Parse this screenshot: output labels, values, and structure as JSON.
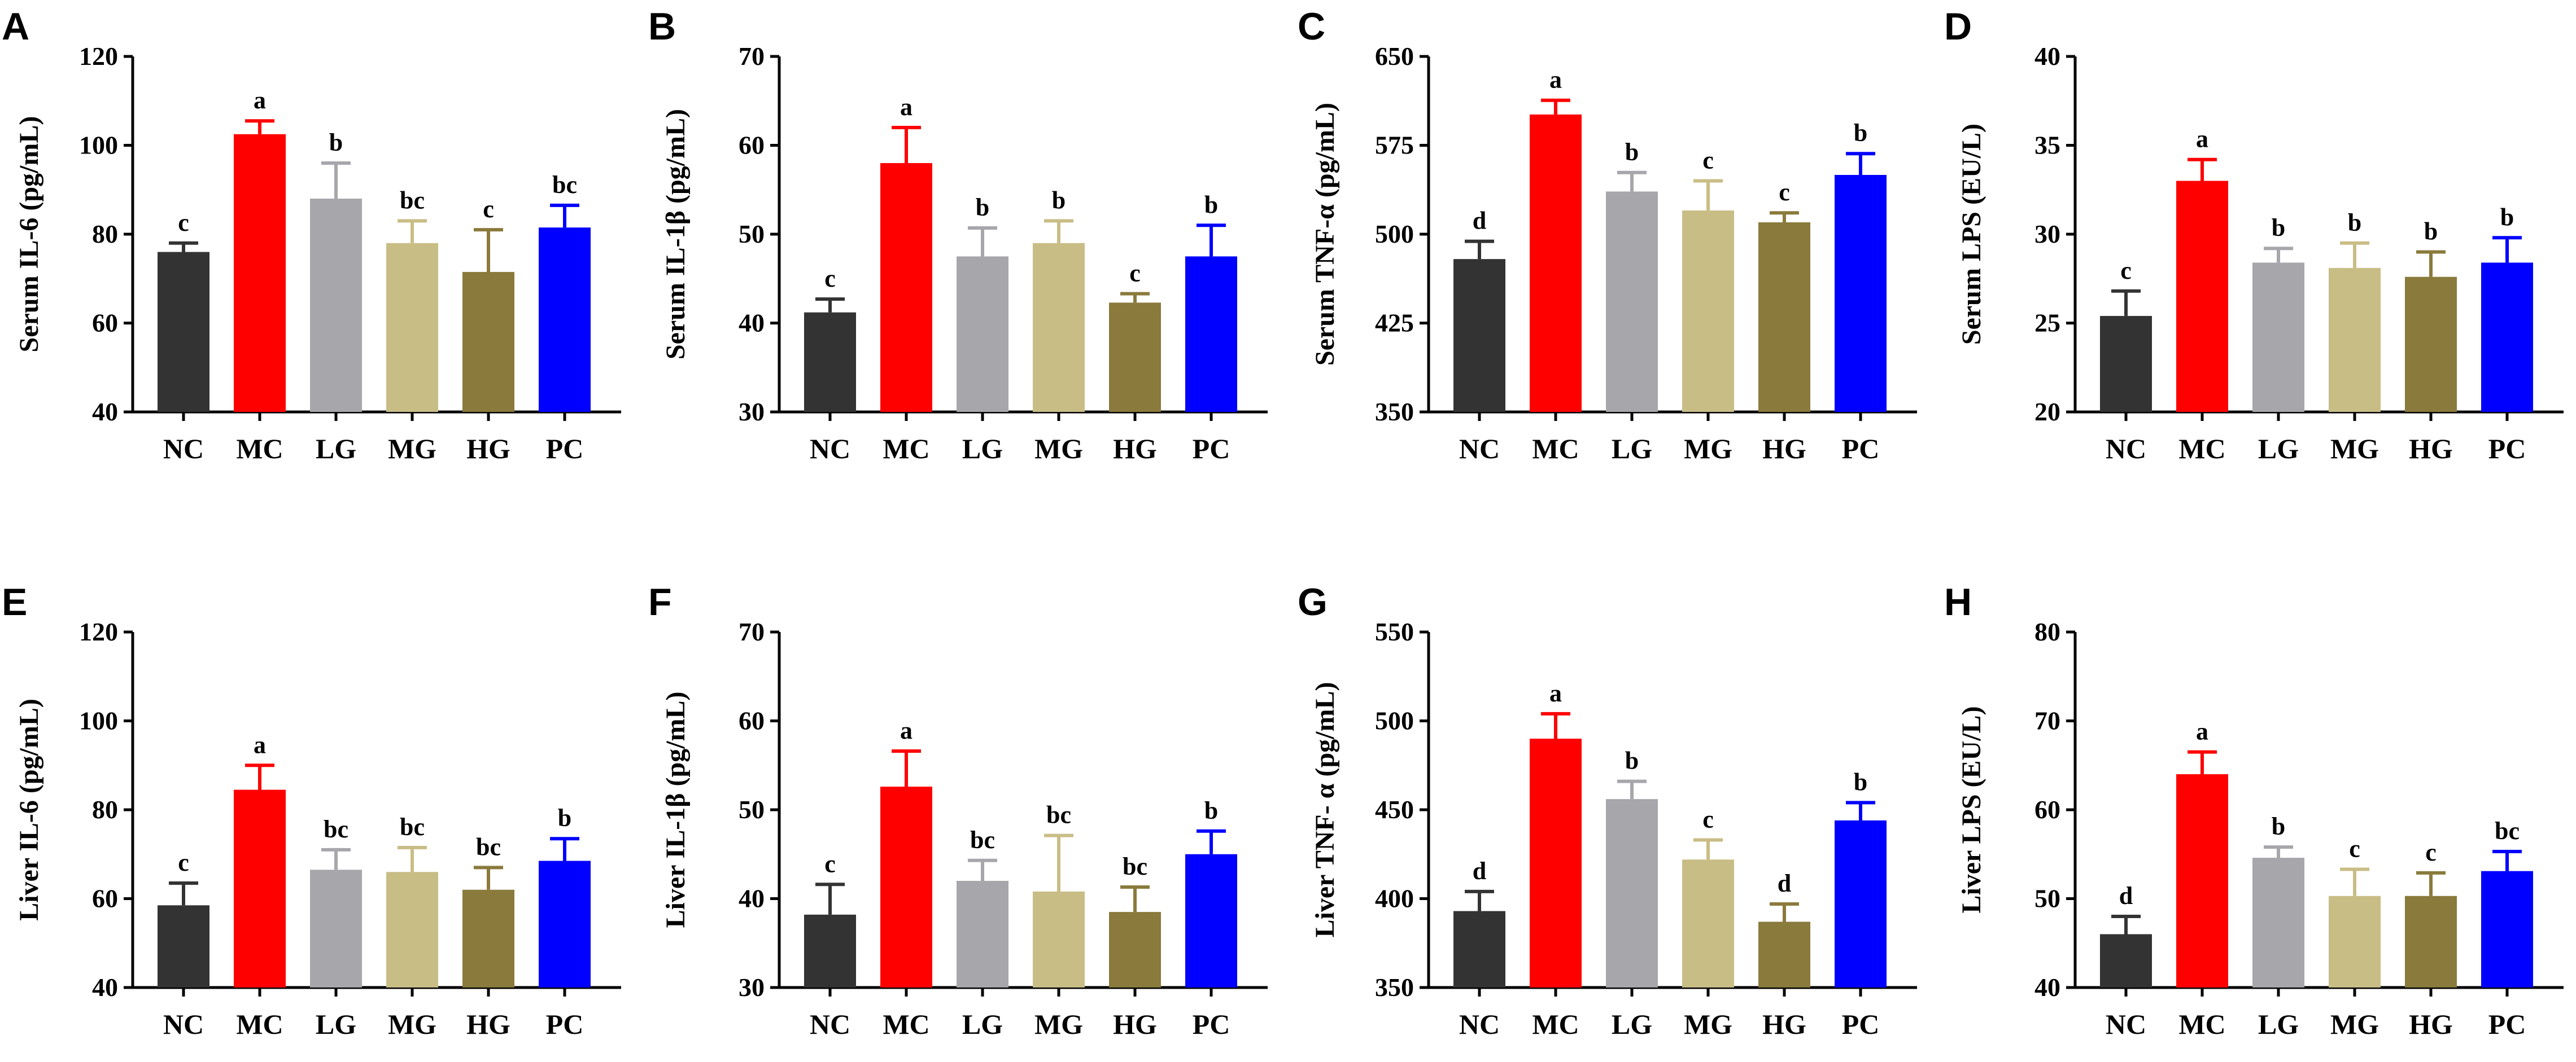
{
  "chart_data": [
    {
      "type": "bar",
      "panel": "A",
      "ylabel": "Serum IL-6 (pg/mL)",
      "categories": [
        "NC",
        "MC",
        "LG",
        "MG",
        "HG",
        "PC"
      ],
      "ylim": [
        40,
        120
      ],
      "yticks": [
        "40",
        "60",
        "80",
        "100",
        "120"
      ],
      "values": [
        76,
        102.5,
        88,
        78,
        71.5,
        81.5
      ],
      "errors": [
        2,
        3,
        8,
        5,
        9.5,
        5
      ],
      "labels": [
        "c",
        "a",
        "b",
        "bc",
        "c",
        "bc"
      ]
    },
    {
      "type": "bar",
      "panel": "B",
      "ylabel": "Serum IL-1β (pg/mL)",
      "categories": [
        "NC",
        "MC",
        "LG",
        "MG",
        "HG",
        "PC"
      ],
      "ylim": [
        30,
        70
      ],
      "yticks": [
        "30",
        "40",
        "50",
        "60",
        "70"
      ],
      "values": [
        41.2,
        58,
        47.5,
        49,
        42.3,
        47.5
      ],
      "errors": [
        1.5,
        4,
        3.2,
        2.5,
        1,
        3.5
      ],
      "labels": [
        "c",
        "a",
        "b",
        "b",
        "c",
        "b"
      ]
    },
    {
      "type": "bar",
      "panel": "C",
      "ylabel": "Serum TNF-α (pg/mL)",
      "categories": [
        "NC",
        "MC",
        "LG",
        "MG",
        "HG",
        "PC"
      ],
      "ylim": [
        350,
        650
      ],
      "yticks": [
        "350",
        "425",
        "500",
        "575",
        "650"
      ],
      "values": [
        479,
        601,
        536,
        520,
        510,
        550
      ],
      "errors": [
        15,
        12,
        16,
        25,
        8,
        18
      ],
      "labels": [
        "d",
        "a",
        "b",
        "c",
        "c",
        "b"
      ]
    },
    {
      "type": "bar",
      "panel": "D",
      "ylabel": "Serum LPS (EU/L)",
      "categories": [
        "NC",
        "MC",
        "LG",
        "MG",
        "HG",
        "PC"
      ],
      "ylim": [
        20,
        40
      ],
      "yticks": [
        "20",
        "25",
        "30",
        "35",
        "40"
      ],
      "values": [
        25.4,
        33,
        28.4,
        28.1,
        27.6,
        28.4
      ],
      "errors": [
        1.4,
        1.2,
        0.8,
        1.4,
        1.4,
        1.4
      ],
      "labels": [
        "c",
        "a",
        "b",
        "b",
        "b",
        "b"
      ]
    },
    {
      "type": "bar",
      "panel": "E",
      "ylabel": "Liver IL-6 (pg/mL)",
      "categories": [
        "NC",
        "MC",
        "LG",
        "MG",
        "HG",
        "PC"
      ],
      "ylim": [
        40,
        120
      ],
      "yticks": [
        "40",
        "60",
        "80",
        "100",
        "120"
      ],
      "values": [
        58.5,
        84.5,
        66.5,
        66,
        62,
        68.5
      ],
      "errors": [
        5,
        5.5,
        4.5,
        5.5,
        5,
        5
      ],
      "labels": [
        "c",
        "a",
        "bc",
        "bc",
        "bc",
        "b"
      ]
    },
    {
      "type": "bar",
      "panel": "F",
      "ylabel": "Liver IL-1β (pg/mL)",
      "categories": [
        "NC",
        "MC",
        "LG",
        "MG",
        "HG",
        "PC"
      ],
      "ylim": [
        30,
        70
      ],
      "yticks": [
        "30",
        "40",
        "50",
        "60",
        "70"
      ],
      "values": [
        38.2,
        52.6,
        42,
        40.8,
        38.5,
        45
      ],
      "errors": [
        3.4,
        4,
        2.3,
        6.3,
        2.8,
        2.6
      ],
      "labels": [
        "c",
        "a",
        "bc",
        "bc",
        "bc",
        "b"
      ]
    },
    {
      "type": "bar",
      "panel": "G",
      "ylabel": "Liver TNF- α (pg/mL)",
      "categories": [
        "NC",
        "MC",
        "LG",
        "MG",
        "HG",
        "PC"
      ],
      "ylim": [
        350,
        550
      ],
      "yticks": [
        "350",
        "400",
        "450",
        "500",
        "550"
      ],
      "values": [
        393,
        490,
        456,
        422,
        387,
        444
      ],
      "errors": [
        11,
        14,
        10,
        11,
        10,
        10
      ],
      "labels": [
        "d",
        "a",
        "b",
        "c",
        "d",
        "b"
      ]
    },
    {
      "type": "bar",
      "panel": "H",
      "ylabel": "Liver LPS (EU/L)",
      "categories": [
        "NC",
        "MC",
        "LG",
        "MG",
        "HG",
        "PC"
      ],
      "ylim": [
        40,
        80
      ],
      "yticks": [
        "40",
        "50",
        "60",
        "70",
        "80"
      ],
      "values": [
        46,
        64,
        54.6,
        50.3,
        50.3,
        53.1
      ],
      "errors": [
        2,
        2.5,
        1.2,
        3,
        2.6,
        2.2
      ],
      "labels": [
        "d",
        "a",
        "b",
        "c",
        "c",
        "bc"
      ]
    }
  ],
  "colors": [
    "#333333",
    "#ff0000",
    "#a7a6ab",
    "#c9bd86",
    "#8a7a3b",
    "#0000ff"
  ]
}
